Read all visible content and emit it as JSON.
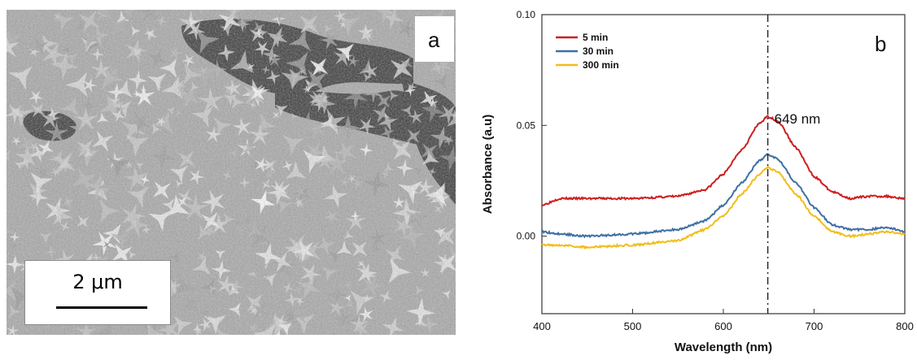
{
  "panel_a": {
    "label": "a",
    "scale_bar_text": "2 μm"
  },
  "panel_b": {
    "label": "b"
  },
  "colors": {
    "5min": "#cc1f1f",
    "30min": "#3f6fa3",
    "300min": "#f2bd1a",
    "guide": "#222222"
  },
  "chart_data": {
    "type": "line",
    "title": "",
    "xlabel": "Wavelength (nm)",
    "ylabel": "Absorbance (a.u)",
    "xlim": [
      400,
      800
    ],
    "ylim": [
      -0.035,
      0.1
    ],
    "xticks": [
      400,
      500,
      600,
      700,
      800
    ],
    "yticks": [
      0.0,
      0.05,
      0.1
    ],
    "ytick_labels": [
      "0.00",
      "0.05",
      "0.10"
    ],
    "grid": false,
    "legend_position": "top-left",
    "annotation": {
      "text": "649 nm",
      "x": 649
    },
    "series": [
      {
        "name": "5 min",
        "x": [
          400,
          420,
          450,
          500,
          550,
          580,
          600,
          620,
          640,
          649,
          660,
          680,
          700,
          720,
          740,
          760,
          780,
          800
        ],
        "values": [
          0.014,
          0.017,
          0.017,
          0.017,
          0.018,
          0.021,
          0.028,
          0.039,
          0.051,
          0.054,
          0.052,
          0.04,
          0.027,
          0.02,
          0.017,
          0.018,
          0.018,
          0.017
        ]
      },
      {
        "name": "30 min",
        "x": [
          400,
          420,
          450,
          500,
          550,
          580,
          600,
          620,
          640,
          649,
          660,
          680,
          700,
          720,
          740,
          760,
          780,
          800
        ],
        "values": [
          0.002,
          0.001,
          0.0,
          0.001,
          0.003,
          0.007,
          0.014,
          0.024,
          0.034,
          0.037,
          0.035,
          0.024,
          0.013,
          0.005,
          0.003,
          0.003,
          0.004,
          0.002
        ]
      },
      {
        "name": "300 min",
        "x": [
          400,
          420,
          450,
          500,
          550,
          580,
          600,
          620,
          640,
          649,
          660,
          680,
          700,
          720,
          740,
          760,
          780,
          800
        ],
        "values": [
          -0.004,
          -0.004,
          -0.005,
          -0.004,
          -0.002,
          0.003,
          0.009,
          0.019,
          0.028,
          0.031,
          0.029,
          0.019,
          0.009,
          0.002,
          0.0,
          0.001,
          0.002,
          0.001
        ]
      }
    ]
  }
}
